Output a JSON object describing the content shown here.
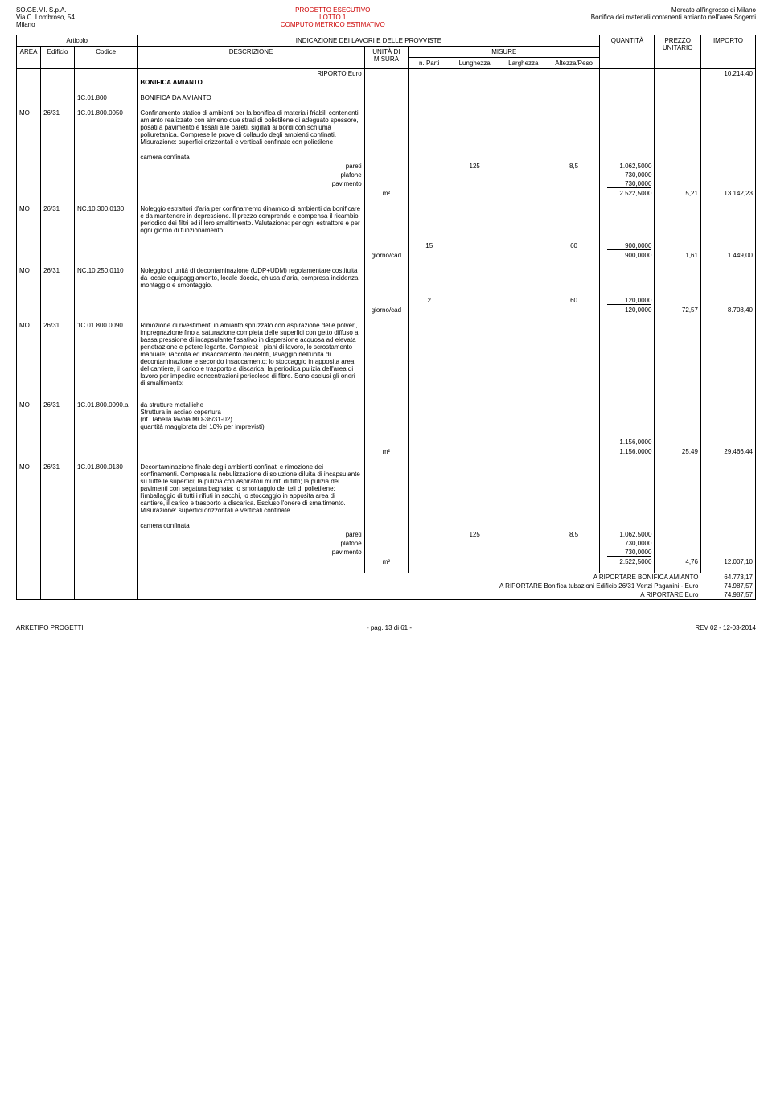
{
  "header": {
    "left": [
      "SO.GE.MI. S.p.A.",
      "Via C. Lombroso, 54",
      "Milano"
    ],
    "center": [
      "PROGETTO ESECUTIVO",
      "LOTTO 1",
      "COMPUTO METRICO ESTIMATIVO"
    ],
    "right": [
      "Mercato all'ingrosso di Milano",
      "Bonifica dei materiali contenenti amianto nell'area Sogemi"
    ]
  },
  "cols": {
    "articolo": "Articolo",
    "indicazione": "INDICAZIONE DEI LAVORI E DELLE PROVVISTE",
    "area": "AREA",
    "edificio": "Edificio",
    "codice": "Codice",
    "descrizione": "DESCRIZIONE",
    "unita": "UNITÀ DI MISURA",
    "misure": "MISURE",
    "parti": "n. Parti",
    "lunghezza": "Lunghezza",
    "larghezza": "Larghezza",
    "altezza": "Altezza/Peso",
    "quantita": "QUANTITÀ",
    "prezzo": "PREZZO UNITARIO",
    "importo": "IMPORTO"
  },
  "riporto": {
    "label": "RIPORTO Euro",
    "value": "10.214,40"
  },
  "section": {
    "bonifica_amianto": "BONIFICA AMIANTO",
    "bonifica_da_amianto_code": "1C.01.800",
    "bonifica_da_amianto": "BONIFICA DA AMIANTO"
  },
  "rows": [
    {
      "area": "MO",
      "edificio": "26/31",
      "codice": "1C.01.800.0050",
      "descr": "Confinamento statico di ambienti per la bonifica di materiali friabili contenenti amianto realizzato con almeno due strati di polietilene di adeguato spessore, posati a pavimento e fissati alle pareti, sigillati ai bordi con schiuma poliuretanica. Comprese le prove di collaudo degli ambienti confinati.\nMisurazione: superfici orizzontali e verticali confinate con polietilene",
      "sublabel": "camera confinata",
      "subitems": [
        {
          "label": "pareti",
          "lung": "125",
          "alt": "8,5",
          "quant": "1.062,5000"
        },
        {
          "label": "plafone",
          "quant": "730,0000"
        },
        {
          "label": "pavimento",
          "quant": "730,0000"
        }
      ],
      "unita": "m²",
      "total_quant": "2.522,5000",
      "prezzo": "5,21",
      "importo": "13.142,23"
    },
    {
      "area": "MO",
      "edificio": "26/31",
      "codice": "NC.10.300.0130",
      "descr": "Noleggio estrattori d'aria per confinamento dinamico di ambienti da bonificare e da mantenere in depressione. Il prezzo comprende e compensa il ricambio periodico dei filtri ed il loro smaltimento. Valutazione: per ogni estrattore e per ogni giorno di funzionamento",
      "subitems": [
        {
          "parti": "15",
          "alt": "60",
          "quant": "900,0000"
        }
      ],
      "unita": "giorno/cad",
      "total_quant": "900,0000",
      "prezzo": "1,61",
      "importo": "1.449,00"
    },
    {
      "area": "MO",
      "edificio": "26/31",
      "codice": "NC.10.250.0110",
      "descr": "Noleggio di unità di decontaminazione (UDP+UDM) regolamentare costituita da locale equipaggiamento, locale doccia, chiusa d'aria, compresa incidenza montaggio e smontaggio.",
      "subitems": [
        {
          "parti": "2",
          "alt": "60",
          "quant": "120,0000"
        }
      ],
      "unita": "giorno/cad",
      "total_quant": "120,0000",
      "prezzo": "72,57",
      "importo": "8.708,40"
    },
    {
      "area": "MO",
      "edificio": "26/31",
      "codice": "1C.01.800.0090",
      "descr": "Rimozione di rivestimenti in amianto spruzzato con aspirazione delle polveri, impregnazione fino a saturazione completa delle superfici con getto diffuso a bassa pressione di incapsulante fissativo in dispersione acquosa ad elevata penetrazione e potere legante. Compresi: i piani di lavoro, lo scrostamento manuale; raccolta ed insaccamento dei detriti, lavaggio nell'unità di decontaminazione e secondo insaccamento; lo stoccaggio in apposita area del cantiere, il carico e trasporto a discarica; la periodica pulizia dell'area di lavoro per impedire concentrazioni pericolose di fibre. Sono esclusi gli oneri di smaltimento:"
    },
    {
      "area": "MO",
      "edificio": "26/31",
      "codice": "1C.01.800.0090.a",
      "descr": "da strutture metalliche\nStruttura in acciao copertura\n(rif. Tabella tavola MO-36/31-02)\nquantità maggiorata del 10% per imprevisti)",
      "subitems": [
        {
          "quant": "1.156,0000"
        }
      ],
      "unita": "m²",
      "total_quant": "1.156,0000",
      "prezzo": "25,49",
      "importo": "29.466,44"
    },
    {
      "area": "MO",
      "edificio": "26/31",
      "codice": "1C.01.800.0130",
      "descr": "Decontaminazione finale degli ambienti confinati e rimozione dei confinamenti. Compresa la nebulizzazione di soluzione diluita di incapsulante su tutte le superfici; la pulizia con aspiratori muniti di filtri; la pulizia dei pavimenti con segatura bagnata; lo smontaggio dei teli di polietilene; l'imballaggio di tutti i rifiuti in sacchi, lo stoccaggio in apposita area di cantiere, il carico e trasporto a discarica. Escluso l'onere di smaltimento. Misurazione: superfici orizzontali e verticali confinate",
      "sublabel": "camera confinata",
      "subitems": [
        {
          "label": "pareti",
          "lung": "125",
          "alt": "8,5",
          "quant": "1.062,5000"
        },
        {
          "label": "plafone",
          "quant": "730,0000"
        },
        {
          "label": "pavimento",
          "quant": "730,0000"
        }
      ],
      "unita": "m²",
      "total_quant": "2.522,5000",
      "prezzo": "4,76",
      "importo": "12.007,10"
    }
  ],
  "footer_totals": [
    {
      "label": "A RIPORTARE BONIFICA AMIANTO",
      "value": "64.773,17"
    },
    {
      "label": "A RIPORTARE Bonifica tubazioni Edificio 26/31 Venzi Paganini - Euro",
      "value": "74.987,57"
    },
    {
      "label": "A RIPORTARE Euro",
      "value": "74.987,57"
    }
  ],
  "footer": {
    "left": "ARKETIPO PROGETTI",
    "center": "- pag. 13 di 61 -",
    "right": "REV 02 - 12-03-2014"
  }
}
